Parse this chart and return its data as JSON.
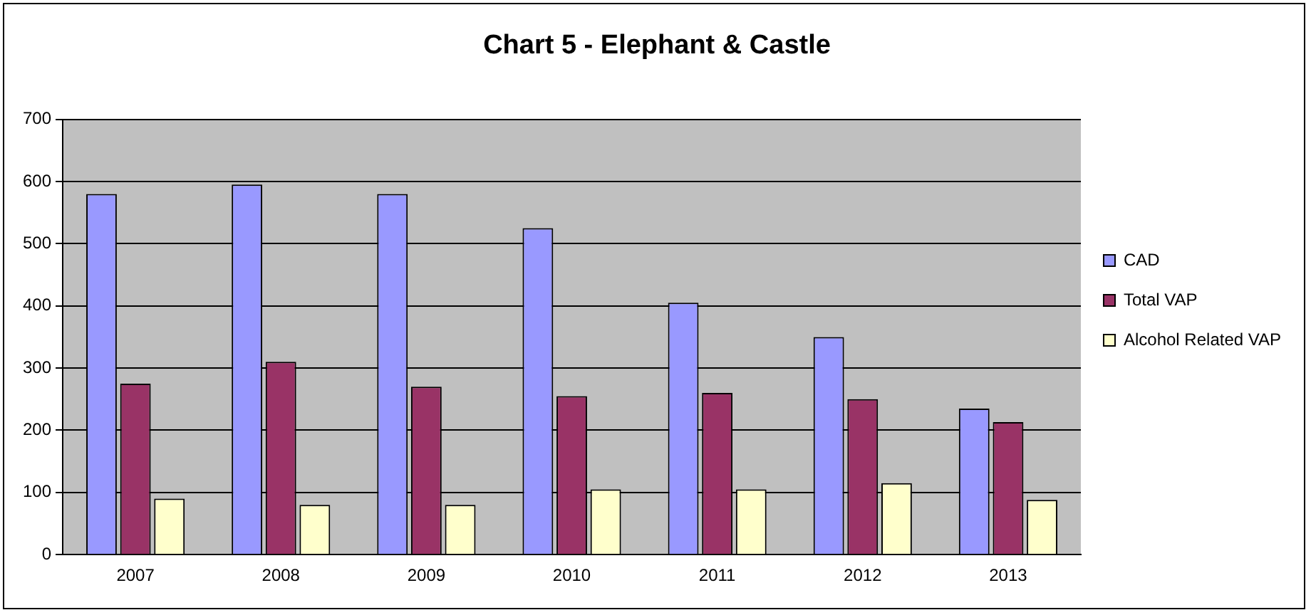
{
  "chart_data": {
    "type": "bar",
    "title": "Chart 5 - Elephant & Castle",
    "categories": [
      "2007",
      "2008",
      "2009",
      "2010",
      "2011",
      "2012",
      "2013"
    ],
    "series": [
      {
        "name": "CAD",
        "color": "#9999ff",
        "values": [
          580,
          595,
          580,
          525,
          405,
          350,
          235
        ]
      },
      {
        "name": "Total VAP",
        "color": "#993366",
        "values": [
          275,
          310,
          270,
          255,
          260,
          250,
          213
        ]
      },
      {
        "name": "Alcohol Related VAP",
        "color": "#ffffcc",
        "values": [
          90,
          80,
          80,
          105,
          105,
          115,
          88
        ]
      }
    ],
    "ylim": [
      0,
      700
    ],
    "yticks": [
      0,
      100,
      200,
      300,
      400,
      500,
      600,
      700
    ],
    "grid": "y",
    "legend": "right"
  }
}
